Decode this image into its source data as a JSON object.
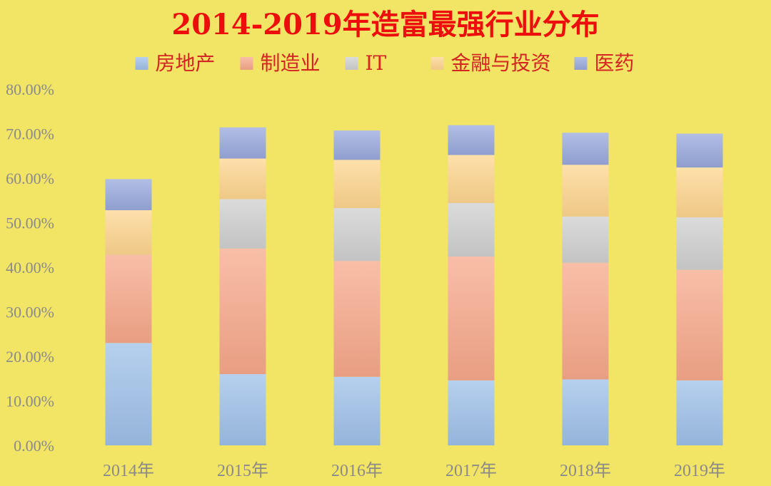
{
  "chart_data": {
    "type": "bar",
    "stacked": true,
    "title": "2014-2019年造富最强行业分布",
    "categories": [
      "2014年",
      "2015年",
      "2016年",
      "2017年",
      "2018年",
      "2019年"
    ],
    "series": [
      {
        "name": "房地产",
        "color": "#9ec0e8",
        "values": [
          23.0,
          16.0,
          15.4,
          14.6,
          14.8,
          14.6
        ]
      },
      {
        "name": "制造业",
        "color": "#f7a88a",
        "values": [
          19.8,
          28.2,
          26.0,
          27.8,
          26.2,
          24.8
        ]
      },
      {
        "name": "IT",
        "color": "#cfcfcf",
        "values": [
          0.0,
          11.1,
          11.9,
          12.0,
          10.4,
          11.8
        ]
      },
      {
        "name": "金融与投资",
        "color": "#fdd58f",
        "values": [
          10.0,
          9.1,
          10.8,
          10.8,
          11.6,
          11.2
        ]
      },
      {
        "name": "医药",
        "color": "#98a8dc",
        "values": [
          7.0,
          7.0,
          6.6,
          6.7,
          7.2,
          7.6
        ]
      }
    ],
    "ylim": [
      0,
      80
    ],
    "yticks": [
      "0.00%",
      "10.00%",
      "20.00%",
      "30.00%",
      "40.00%",
      "50.00%",
      "60.00%",
      "70.00%",
      "80.00%"
    ],
    "legend_position": "top",
    "grid": false
  }
}
